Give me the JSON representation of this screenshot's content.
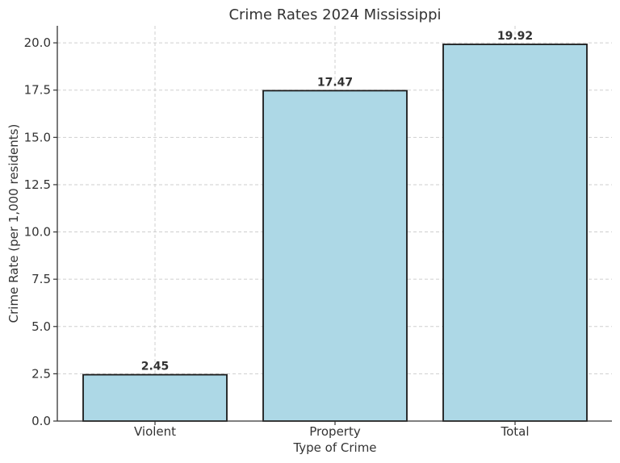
{
  "chart_data": {
    "type": "bar",
    "title": "Crime Rates 2024 Mississippi",
    "xlabel": "Type of Crime",
    "ylabel": "Crime Rate (per 1,000 residents)",
    "categories": [
      "Violent",
      "Property",
      "Total"
    ],
    "values": [
      2.45,
      17.47,
      19.92
    ],
    "value_labels": [
      "2.45",
      "17.47",
      "19.92"
    ],
    "ylim": [
      0,
      20.9
    ],
    "yticks": [
      0,
      2.5,
      5,
      7.5,
      10,
      12.5,
      15,
      17.5,
      20
    ],
    "ytick_labels": [
      "0.0",
      "2.5",
      "5.0",
      "7.5",
      "10.0",
      "12.5",
      "15.0",
      "17.5",
      "20.0"
    ],
    "grid": true,
    "bar_color": "#add8e6",
    "bar_edge_color": "#1a1a1a"
  }
}
